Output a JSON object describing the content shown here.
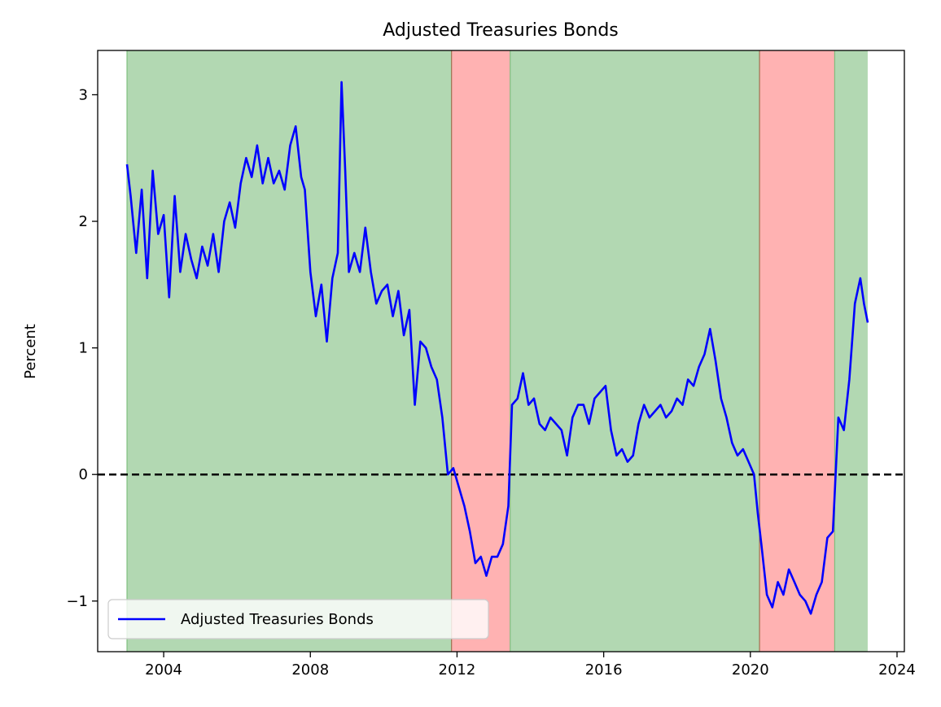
{
  "chart_data": {
    "type": "line",
    "title": "Adjusted Treasuries Bonds",
    "xlabel": "",
    "ylabel": "Percent",
    "xlim": [
      2002.2,
      2024.2
    ],
    "ylim": [
      -1.4,
      3.35
    ],
    "x_ticks": [
      2004,
      2008,
      2012,
      2016,
      2020,
      2024
    ],
    "x_tick_labels": [
      "2004",
      "2008",
      "2012",
      "2016",
      "2020",
      "2024"
    ],
    "y_ticks": [
      -1,
      0,
      1,
      2,
      3
    ],
    "y_tick_labels": [
      "−1",
      "0",
      "1",
      "2",
      "3"
    ],
    "reference_line": {
      "y": 0,
      "style": "dashed",
      "color": "#000000"
    },
    "legend": {
      "position": "lower-left",
      "entries": [
        "Adjusted Treasuries Bonds"
      ]
    },
    "regimes": [
      {
        "start": 2003.0,
        "end": 2011.85,
        "color": "#b2d8b2",
        "edge": "#7fbf7f"
      },
      {
        "start": 2011.85,
        "end": 2013.45,
        "color": "#ffb2b2",
        "edge": "#a07050"
      },
      {
        "start": 2013.45,
        "end": 2020.25,
        "color": "#b2d8b2",
        "edge": "#7fbf7f"
      },
      {
        "start": 2020.25,
        "end": 2022.3,
        "color": "#ffb2b2",
        "edge": "#a07050"
      },
      {
        "start": 2022.3,
        "end": 2023.2,
        "color": "#b2d8b2",
        "edge": "#7fbf7f"
      }
    ],
    "series": [
      {
        "name": "Adjusted Treasuries Bonds",
        "color": "#0000ff",
        "x": [
          2003.0,
          2003.1,
          2003.25,
          2003.4,
          2003.55,
          2003.7,
          2003.85,
          2004.0,
          2004.15,
          2004.3,
          2004.45,
          2004.6,
          2004.75,
          2004.9,
          2005.05,
          2005.2,
          2005.35,
          2005.5,
          2005.65,
          2005.8,
          2005.95,
          2006.1,
          2006.25,
          2006.4,
          2006.55,
          2006.7,
          2006.85,
          2007.0,
          2007.15,
          2007.3,
          2007.45,
          2007.6,
          2007.75,
          2007.85,
          2008.0,
          2008.15,
          2008.3,
          2008.45,
          2008.6,
          2008.75,
          2008.85,
          2008.95,
          2009.05,
          2009.2,
          2009.35,
          2009.5,
          2009.65,
          2009.8,
          2009.95,
          2010.1,
          2010.25,
          2010.4,
          2010.55,
          2010.7,
          2010.85,
          2011.0,
          2011.15,
          2011.3,
          2011.45,
          2011.6,
          2011.75,
          2011.9,
          2012.05,
          2012.2,
          2012.35,
          2012.5,
          2012.65,
          2012.8,
          2012.95,
          2013.1,
          2013.25,
          2013.4,
          2013.5,
          2013.65,
          2013.8,
          2013.95,
          2014.1,
          2014.25,
          2014.4,
          2014.55,
          2014.7,
          2014.85,
          2015.0,
          2015.15,
          2015.3,
          2015.45,
          2015.6,
          2015.75,
          2015.9,
          2016.05,
          2016.2,
          2016.35,
          2016.5,
          2016.65,
          2016.8,
          2016.95,
          2017.1,
          2017.25,
          2017.4,
          2017.55,
          2017.7,
          2017.85,
          2018.0,
          2018.15,
          2018.3,
          2018.45,
          2018.6,
          2018.75,
          2018.9,
          2019.05,
          2019.2,
          2019.35,
          2019.5,
          2019.65,
          2019.8,
          2019.95,
          2020.1,
          2020.2,
          2020.3,
          2020.45,
          2020.6,
          2020.75,
          2020.9,
          2021.05,
          2021.2,
          2021.35,
          2021.5,
          2021.65,
          2021.8,
          2021.95,
          2022.1,
          2022.25,
          2022.4,
          2022.55,
          2022.7,
          2022.85,
          2023.0,
          2023.1,
          2023.2
        ],
        "values": [
          2.45,
          2.2,
          1.75,
          2.25,
          1.55,
          2.4,
          1.9,
          2.05,
          1.4,
          2.2,
          1.6,
          1.9,
          1.7,
          1.55,
          1.8,
          1.65,
          1.9,
          1.6,
          2.0,
          2.15,
          1.95,
          2.3,
          2.5,
          2.35,
          2.6,
          2.3,
          2.5,
          2.3,
          2.4,
          2.25,
          2.6,
          2.75,
          2.35,
          2.25,
          1.6,
          1.25,
          1.5,
          1.05,
          1.55,
          1.75,
          3.1,
          2.4,
          1.6,
          1.75,
          1.6,
          1.95,
          1.6,
          1.35,
          1.45,
          1.5,
          1.25,
          1.45,
          1.1,
          1.3,
          0.55,
          1.05,
          1.0,
          0.85,
          0.75,
          0.45,
          0.0,
          0.05,
          -0.1,
          -0.25,
          -0.45,
          -0.7,
          -0.65,
          -0.8,
          -0.65,
          -0.65,
          -0.55,
          -0.25,
          0.55,
          0.6,
          0.8,
          0.55,
          0.6,
          0.4,
          0.35,
          0.45,
          0.4,
          0.35,
          0.15,
          0.45,
          0.55,
          0.55,
          0.4,
          0.6,
          0.65,
          0.7,
          0.35,
          0.15,
          0.2,
          0.1,
          0.15,
          0.4,
          0.55,
          0.45,
          0.5,
          0.55,
          0.45,
          0.5,
          0.6,
          0.55,
          0.75,
          0.7,
          0.85,
          0.95,
          1.15,
          0.9,
          0.6,
          0.45,
          0.25,
          0.15,
          0.2,
          0.1,
          0.0,
          -0.3,
          -0.55,
          -0.95,
          -1.05,
          -0.85,
          -0.95,
          -0.75,
          -0.85,
          -0.95,
          -1.0,
          -1.1,
          -0.95,
          -0.85,
          -0.5,
          -0.45,
          0.45,
          0.35,
          0.75,
          1.35,
          1.55,
          1.35,
          1.2
        ]
      }
    ]
  }
}
